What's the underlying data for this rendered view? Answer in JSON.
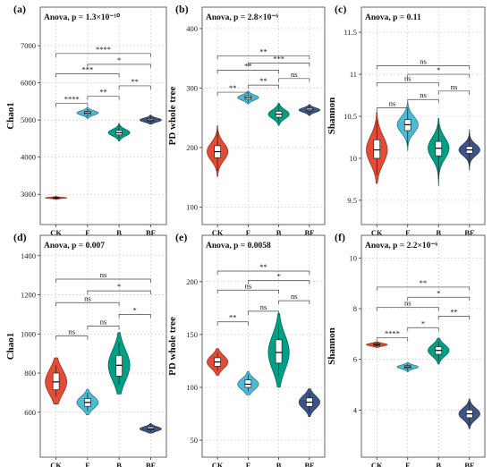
{
  "chart_data": [
    {
      "panel": "(a)",
      "type": "violin",
      "anova": "Anova, p = 1.3×10⁻¹⁰",
      "ylabel": "Chao1",
      "ylim": [
        2500,
        7700
      ],
      "yticks": [
        3000,
        4000,
        5000,
        6000,
        7000
      ],
      "categories": [
        "CK",
        "F",
        "B",
        "BF"
      ],
      "colors": [
        "#e64b35",
        "#4dbbd5",
        "#00a087",
        "#3c5488"
      ],
      "groups": [
        {
          "name": "CK",
          "min": 2870,
          "q1": 2895,
          "median": 2905,
          "q3": 2915,
          "max": 2945
        },
        {
          "name": "F",
          "min": 5080,
          "q1": 5150,
          "median": 5190,
          "q3": 5230,
          "max": 5300
        },
        {
          "name": "B",
          "min": 4490,
          "q1": 4600,
          "median": 4660,
          "q3": 4720,
          "max": 4850
        },
        {
          "name": "BF",
          "min": 4920,
          "q1": 4970,
          "median": 5000,
          "q3": 5040,
          "max": 5100
        }
      ],
      "comparisons": [
        {
          "from": "CK",
          "to": "F",
          "y": 5450,
          "label": "****"
        },
        {
          "from": "F",
          "to": "B",
          "y": 5640,
          "label": "**"
        },
        {
          "from": "B",
          "to": "BF",
          "y": 5920,
          "label": "**"
        },
        {
          "from": "CK",
          "to": "B",
          "y": 6240,
          "label": "***"
        },
        {
          "from": "F",
          "to": "BF",
          "y": 6500,
          "label": "*"
        },
        {
          "from": "CK",
          "to": "BF",
          "y": 6790,
          "label": "****"
        }
      ]
    },
    {
      "panel": "(b)",
      "type": "violin",
      "anova": "Anova, p = 2.8×10⁻⁶",
      "ylabel": "PD whole tree",
      "ylim": [
        90,
        415
      ],
      "yticks": [
        100,
        200,
        300,
        400
      ],
      "categories": [
        "CK",
        "F",
        "B",
        "BF"
      ],
      "colors": [
        "#e64b35",
        "#4dbbd5",
        "#00a087",
        "#3c5488"
      ],
      "groups": [
        {
          "name": "CK",
          "min": 160,
          "q1": 183,
          "median": 193,
          "q3": 203,
          "max": 228
        },
        {
          "name": "F",
          "min": 276,
          "q1": 281,
          "median": 284,
          "q3": 287,
          "max": 292
        },
        {
          "name": "B",
          "min": 242,
          "q1": 251,
          "median": 256,
          "q3": 261,
          "max": 270
        },
        {
          "name": "BF",
          "min": 256,
          "q1": 261,
          "median": 263,
          "q3": 266,
          "max": 270
        }
      ],
      "comparisons": [
        {
          "from": "CK",
          "to": "F",
          "y": 293,
          "label": "**"
        },
        {
          "from": "F",
          "to": "B",
          "y": 305,
          "label": "**"
        },
        {
          "from": "B",
          "to": "BF",
          "y": 316,
          "label": "ns"
        },
        {
          "from": "CK",
          "to": "B",
          "y": 330,
          "label": "**"
        },
        {
          "from": "F",
          "to": "BF",
          "y": 342,
          "label": "***"
        },
        {
          "from": "CK",
          "to": "BF",
          "y": 354,
          "label": "**"
        }
      ]
    },
    {
      "panel": "(c)",
      "type": "violin",
      "anova": "Anova, p = 0.11",
      "ylabel": "Shannon",
      "ylim": [
        9.35,
        11.65
      ],
      "yticks": [
        9.5,
        10.0,
        10.5,
        11.0,
        11.5
      ],
      "categories": [
        "CK",
        "F",
        "B",
        "BF"
      ],
      "colors": [
        "#e64b35",
        "#4dbbd5",
        "#00a087",
        "#3c5488"
      ],
      "groups": [
        {
          "name": "CK",
          "min": 9.8,
          "q1": 10.0,
          "median": 10.1,
          "q3": 10.22,
          "max": 10.45
        },
        {
          "name": "F",
          "min": 10.15,
          "q1": 10.33,
          "median": 10.4,
          "q3": 10.46,
          "max": 10.6
        },
        {
          "name": "B",
          "min": 9.75,
          "q1": 10.03,
          "median": 10.12,
          "q3": 10.2,
          "max": 10.4
        },
        {
          "name": "BF",
          "min": 9.9,
          "q1": 10.06,
          "median": 10.1,
          "q3": 10.14,
          "max": 10.3
        }
      ],
      "comparisons": [
        {
          "from": "CK",
          "to": "F",
          "y": 10.6,
          "label": "ns"
        },
        {
          "from": "F",
          "to": "B",
          "y": 10.7,
          "label": "ns"
        },
        {
          "from": "B",
          "to": "BF",
          "y": 10.8,
          "label": "ns"
        },
        {
          "from": "CK",
          "to": "B",
          "y": 10.9,
          "label": "ns"
        },
        {
          "from": "F",
          "to": "BF",
          "y": 11.0,
          "label": "*"
        },
        {
          "from": "CK",
          "to": "BF",
          "y": 11.1,
          "label": "ns"
        }
      ]
    },
    {
      "panel": "(d)",
      "type": "violin",
      "anova": "Anova, p = 0.007",
      "ylabel": "Chao1",
      "ylim": [
        430,
        1440
      ],
      "yticks": [
        600,
        800,
        1000,
        1200,
        1400
      ],
      "categories": [
        "CK",
        "F",
        "B",
        "BF"
      ],
      "colors": [
        "#e64b35",
        "#4dbbd5",
        "#00a087",
        "#3c5488"
      ],
      "groups": [
        {
          "name": "CK",
          "min": 680,
          "q1": 715,
          "median": 755,
          "q3": 800,
          "max": 840
        },
        {
          "name": "F",
          "min": 605,
          "q1": 630,
          "median": 650,
          "q3": 670,
          "max": 700
        },
        {
          "name": "B",
          "min": 740,
          "q1": 785,
          "median": 840,
          "q3": 890,
          "max": 960
        },
        {
          "name": "BF",
          "min": 500,
          "q1": 510,
          "median": 515,
          "q3": 525,
          "max": 535
        }
      ],
      "comparisons": [
        {
          "from": "CK",
          "to": "F",
          "y": 990,
          "label": "ns"
        },
        {
          "from": "F",
          "to": "B",
          "y": 1040,
          "label": "ns"
        },
        {
          "from": "B",
          "to": "BF",
          "y": 1100,
          "label": "*"
        },
        {
          "from": "CK",
          "to": "B",
          "y": 1160,
          "label": "ns"
        },
        {
          "from": "F",
          "to": "BF",
          "y": 1220,
          "label": "*"
        },
        {
          "from": "CK",
          "to": "BF",
          "y": 1280,
          "label": "ns"
        }
      ]
    },
    {
      "panel": "(e)",
      "type": "violin",
      "anova": "Anova, p = 0.0058",
      "ylabel": "PD whole tree",
      "ylim": [
        45,
        232
      ],
      "yticks": [
        50,
        100,
        150,
        200
      ],
      "categories": [
        "CK",
        "F",
        "B",
        "BF"
      ],
      "colors": [
        "#e64b35",
        "#4dbbd5",
        "#00a087",
        "#3c5488"
      ],
      "groups": [
        {
          "name": "CK",
          "min": 115,
          "q1": 120,
          "median": 124,
          "q3": 128,
          "max": 133
        },
        {
          "name": "F",
          "min": 96,
          "q1": 100,
          "median": 103,
          "q3": 107,
          "max": 112
        },
        {
          "name": "B",
          "min": 110,
          "q1": 123,
          "median": 133,
          "q3": 145,
          "max": 160
        },
        {
          "name": "BF",
          "min": 76,
          "q1": 82,
          "median": 86,
          "q3": 90,
          "max": 95
        }
      ],
      "comparisons": [
        {
          "from": "CK",
          "to": "F",
          "y": 162,
          "label": "**"
        },
        {
          "from": "F",
          "to": "B",
          "y": 172,
          "label": "ns"
        },
        {
          "from": "B",
          "to": "BF",
          "y": 182,
          "label": "ns"
        },
        {
          "from": "CK",
          "to": "B",
          "y": 192,
          "label": "ns"
        },
        {
          "from": "F",
          "to": "BF",
          "y": 201,
          "label": "*"
        },
        {
          "from": "CK",
          "to": "BF",
          "y": 210,
          "label": "**"
        }
      ]
    },
    {
      "panel": "(f)",
      "type": "violin",
      "anova": "Anova, p = 2.2×10⁻⁶",
      "ylabel": "Shannon",
      "ylim": [
        2.6,
        10.4
      ],
      "yticks": [
        4,
        6,
        8,
        10
      ],
      "categories": [
        "CK",
        "F",
        "B",
        "BF"
      ],
      "colors": [
        "#e64b35",
        "#4dbbd5",
        "#00a087",
        "#3c5488"
      ],
      "groups": [
        {
          "name": "CK",
          "min": 6.5,
          "q1": 6.55,
          "median": 6.58,
          "q3": 6.62,
          "max": 6.66
        },
        {
          "name": "F",
          "min": 5.55,
          "q1": 5.65,
          "median": 5.7,
          "q3": 5.75,
          "max": 5.83
        },
        {
          "name": "B",
          "min": 5.95,
          "q1": 6.2,
          "median": 6.35,
          "q3": 6.5,
          "max": 6.7
        },
        {
          "name": "BF",
          "min": 3.4,
          "q1": 3.7,
          "median": 3.85,
          "q3": 4.0,
          "max": 4.3
        }
      ],
      "comparisons": [
        {
          "from": "CK",
          "to": "F",
          "y": 6.85,
          "label": "****"
        },
        {
          "from": "F",
          "to": "B",
          "y": 7.25,
          "label": "*"
        },
        {
          "from": "B",
          "to": "BF",
          "y": 7.7,
          "label": "**"
        },
        {
          "from": "CK",
          "to": "B",
          "y": 8.05,
          "label": "ns"
        },
        {
          "from": "F",
          "to": "BF",
          "y": 8.45,
          "label": "*"
        },
        {
          "from": "CK",
          "to": "BF",
          "y": 8.85,
          "label": "**"
        }
      ]
    }
  ]
}
